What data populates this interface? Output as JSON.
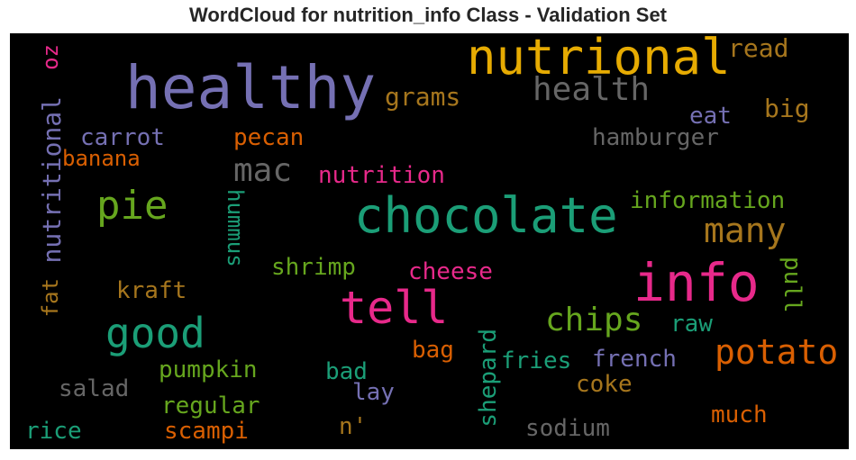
{
  "title": "WordCloud for nutrition_info Class - Validation Set",
  "chart_data": {
    "type": "wordcloud",
    "background": "#000000",
    "words": [
      {
        "text": "healthy",
        "color": "#7570b3"
      },
      {
        "text": "nutrional",
        "color": "#e6ab02"
      },
      {
        "text": "chocolate",
        "color": "#1b9e77"
      },
      {
        "text": "info",
        "color": "#e7298a"
      },
      {
        "text": "tell",
        "color": "#e7298a"
      },
      {
        "text": "good",
        "color": "#1b9e77"
      },
      {
        "text": "pie",
        "color": "#66a61e"
      },
      {
        "text": "health",
        "color": "#666666"
      },
      {
        "text": "mac",
        "color": "#666666"
      },
      {
        "text": "potato",
        "color": "#d95f02"
      },
      {
        "text": "chips",
        "color": "#66a61e"
      },
      {
        "text": "many",
        "color": "#a6761d"
      },
      {
        "text": "nutritional",
        "color": "#7570b3"
      },
      {
        "text": "grams",
        "color": "#a6761d"
      },
      {
        "text": "read",
        "color": "#a6761d"
      },
      {
        "text": "big",
        "color": "#a6761d"
      },
      {
        "text": "eat",
        "color": "#7570b3"
      },
      {
        "text": "hamburger",
        "color": "#666666"
      },
      {
        "text": "carrot",
        "color": "#7570b3"
      },
      {
        "text": "pecan",
        "color": "#d95f02"
      },
      {
        "text": "banana",
        "color": "#d95f02"
      },
      {
        "text": "nutrition",
        "color": "#e7298a"
      },
      {
        "text": "information",
        "color": "#66a61e"
      },
      {
        "text": "oz",
        "color": "#e7298a"
      },
      {
        "text": "hummus",
        "color": "#1b9e77"
      },
      {
        "text": "shrimp",
        "color": "#66a61e"
      },
      {
        "text": "cheese",
        "color": "#e7298a"
      },
      {
        "text": "pull",
        "color": "#66a61e"
      },
      {
        "text": "kraft",
        "color": "#a6761d"
      },
      {
        "text": "fat",
        "color": "#a6761d"
      },
      {
        "text": "raw",
        "color": "#1b9e77"
      },
      {
        "text": "bag",
        "color": "#d95f02"
      },
      {
        "text": "french",
        "color": "#7570b3"
      },
      {
        "text": "fries",
        "color": "#1b9e77"
      },
      {
        "text": "shepard",
        "color": "#1b9e77"
      },
      {
        "text": "pumpkin",
        "color": "#66a61e"
      },
      {
        "text": "bad",
        "color": "#1b9e77"
      },
      {
        "text": "coke",
        "color": "#a6761d"
      },
      {
        "text": "salad",
        "color": "#666666"
      },
      {
        "text": "regular",
        "color": "#66a61e"
      },
      {
        "text": "lay",
        "color": "#7570b3"
      },
      {
        "text": "much",
        "color": "#d95f02"
      },
      {
        "text": "n'",
        "color": "#a6761d"
      },
      {
        "text": "rice",
        "color": "#1b9e77"
      },
      {
        "text": "scampi",
        "color": "#d95f02"
      },
      {
        "text": "sodium",
        "color": "#666666"
      }
    ]
  }
}
